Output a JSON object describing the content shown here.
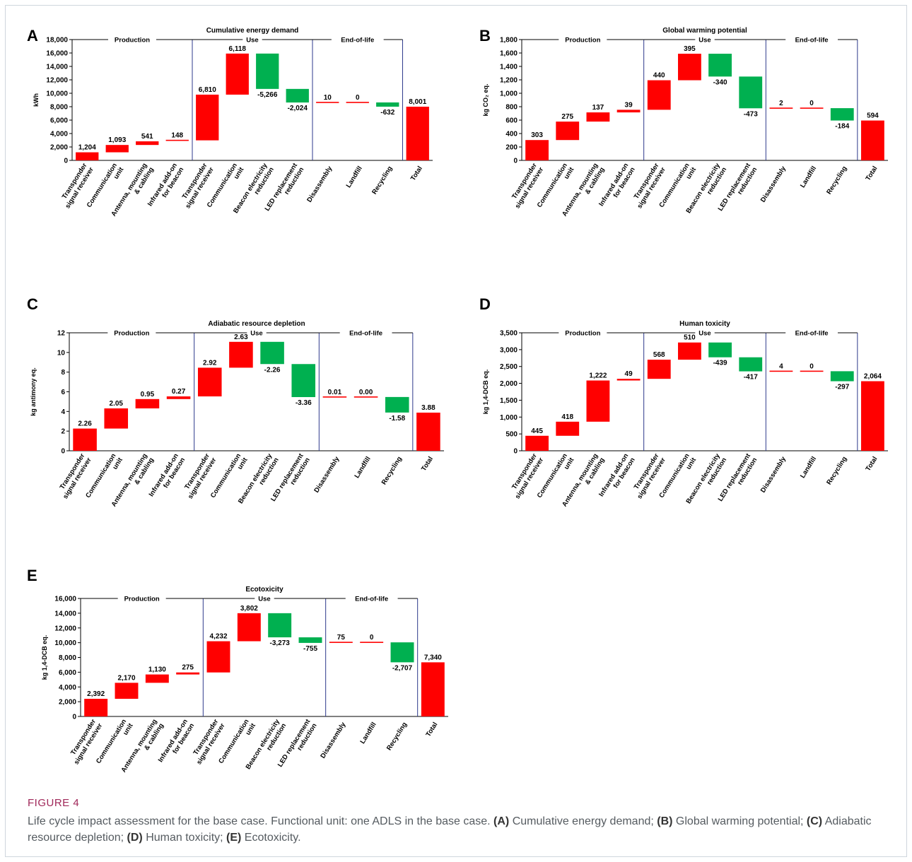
{
  "colors": {
    "increase": "#ff0000",
    "decrease": "#00b050",
    "total": "#ff0000",
    "stage_line": "#2e3a8c"
  },
  "caption": {
    "label": "FIGURE 4",
    "intro": "Life cycle impact assessment for the base case. Functional unit: one ADLS in the base case.",
    "parts": [
      {
        "tag": "(A)",
        "text": " Cumulative energy demand;"
      },
      {
        "tag": "(B)",
        "text": " Global warming potential;"
      },
      {
        "tag": "(C)",
        "text": " Adiabatic resource depletion;"
      },
      {
        "tag": "(D)",
        "text": " Human toxicity;"
      },
      {
        "tag": "(E)",
        "text": " Ecotoxicity."
      }
    ]
  },
  "chart_data": [
    {
      "panel": "A",
      "type": "bar",
      "subtype": "waterfall",
      "title": "Cumulative energy demand",
      "ylabel": "kWh",
      "ylim": [
        0,
        18000
      ],
      "yticks": [
        0,
        2000,
        4000,
        6000,
        8000,
        10000,
        12000,
        14000,
        16000,
        18000
      ],
      "ytick_labels": [
        "0",
        "2,000",
        "4,000",
        "6,000",
        "8,000",
        "10,000",
        "12,000",
        "14,000",
        "16,000",
        "18,000"
      ],
      "stages": [
        {
          "name": "Production",
          "count": 4
        },
        {
          "name": "Use",
          "count": 4
        },
        {
          "name": "End-of-life",
          "count": 3
        }
      ],
      "categories": [
        [
          "Transponder",
          "signal receiver"
        ],
        [
          "Communication",
          "unit"
        ],
        [
          "Antenna, mounting",
          "& cabling"
        ],
        [
          "Infrared add-on",
          "for beacon"
        ],
        [
          "Transponder",
          "signal receiver"
        ],
        [
          "Communication",
          "unit"
        ],
        [
          "Beacon electricity",
          "reduction"
        ],
        [
          "LED replacement",
          "reduction"
        ],
        [
          "Disassembly"
        ],
        [
          "Landfill"
        ],
        [
          "Recycling"
        ],
        [
          "Total"
        ]
      ],
      "values": [
        1204,
        1093,
        541,
        148,
        6810,
        6118,
        -5266,
        -2024,
        10,
        0,
        -632,
        8001
      ],
      "value_labels": [
        "1,204",
        "1,093",
        "541",
        "148",
        "6,810",
        "6,118",
        "-5,266",
        "-2,024",
        "10",
        "0",
        "-632",
        "8,001"
      ]
    },
    {
      "panel": "B",
      "type": "bar",
      "subtype": "waterfall",
      "title": "Global warming potential",
      "ylabel": "kg CO₂ eq.",
      "ylim": [
        0,
        1800
      ],
      "yticks": [
        0,
        200,
        400,
        600,
        800,
        1000,
        1200,
        1400,
        1600,
        1800
      ],
      "ytick_labels": [
        "0",
        "200",
        "400",
        "600",
        "800",
        "1,000",
        "1,200",
        "1,400",
        "1,600",
        "1,800"
      ],
      "stages": [
        {
          "name": "Production",
          "count": 4
        },
        {
          "name": "Use",
          "count": 4
        },
        {
          "name": "End-of-life",
          "count": 3
        }
      ],
      "categories": [
        [
          "Transponder",
          "signal receiver"
        ],
        [
          "Communication",
          "unit"
        ],
        [
          "Antenna, mounting",
          "& cabling"
        ],
        [
          "Infrared add-on",
          "for beacon"
        ],
        [
          "Transponder",
          "signal receiver"
        ],
        [
          "Communication",
          "unit"
        ],
        [
          "Beacon electricity",
          "reduction"
        ],
        [
          "LED replacement",
          "reduction"
        ],
        [
          "Disassembly"
        ],
        [
          "Landfill"
        ],
        [
          "Recycling"
        ],
        [
          "Total"
        ]
      ],
      "values": [
        303,
        275,
        137,
        39,
        440,
        395,
        -340,
        -473,
        2,
        0,
        -184,
        594
      ],
      "value_labels": [
        "303",
        "275",
        "137",
        "39",
        "440",
        "395",
        "-340",
        "-473",
        "2",
        "0",
        "-184",
        "594"
      ]
    },
    {
      "panel": "C",
      "type": "bar",
      "subtype": "waterfall",
      "title": "Adiabatic resource depletion",
      "ylabel": "kg antimony eq.",
      "ylim": [
        0,
        12
      ],
      "yticks": [
        0,
        2,
        4,
        6,
        8,
        10,
        12
      ],
      "ytick_labels": [
        "0",
        "2",
        "4",
        "6",
        "8",
        "10",
        "12"
      ],
      "stages": [
        {
          "name": "Production",
          "count": 4
        },
        {
          "name": "Use",
          "count": 4
        },
        {
          "name": "End-of-life",
          "count": 3
        }
      ],
      "categories": [
        [
          "Transponder",
          "signal receiver"
        ],
        [
          "Communication",
          "unit"
        ],
        [
          "Antenna, mounting",
          "& cabling"
        ],
        [
          "Infrared add-on",
          "for beacon"
        ],
        [
          "Transponder",
          "signal receiver"
        ],
        [
          "Communication",
          "unit"
        ],
        [
          "Beacon electricity",
          "reduction"
        ],
        [
          "LED replacement",
          "reduction"
        ],
        [
          "Disassembly"
        ],
        [
          "Landfill"
        ],
        [
          "Recycling"
        ],
        [
          "Total"
        ]
      ],
      "values": [
        2.26,
        2.05,
        0.95,
        0.27,
        2.92,
        2.63,
        -2.26,
        -3.36,
        0.01,
        0.0,
        -1.58,
        3.88
      ],
      "value_labels": [
        "2.26",
        "2.05",
        "0.95",
        "0.27",
        "2.92",
        "2.63",
        "-2.26",
        "-3.36",
        "0.01",
        "0.00",
        "-1.58",
        "3.88"
      ]
    },
    {
      "panel": "D",
      "type": "bar",
      "subtype": "waterfall",
      "title": "Human toxicity",
      "ylabel": "kg 1,4-DCB eq.",
      "ylim": [
        0,
        3500
      ],
      "yticks": [
        0,
        500,
        1000,
        1500,
        2000,
        2500,
        3000,
        3500
      ],
      "ytick_labels": [
        "0",
        "500",
        "1,000",
        "1,500",
        "2,000",
        "2,500",
        "3,000",
        "3,500"
      ],
      "stages": [
        {
          "name": "Production",
          "count": 4
        },
        {
          "name": "Use",
          "count": 4
        },
        {
          "name": "End-of-life",
          "count": 3
        }
      ],
      "categories": [
        [
          "Transponder",
          "signal receiver"
        ],
        [
          "Communication",
          "unit"
        ],
        [
          "Antenna, mounting",
          "& cabling"
        ],
        [
          "Infrared add-on",
          "for beacon"
        ],
        [
          "Transponder",
          "signal receiver"
        ],
        [
          "Communication",
          "unit"
        ],
        [
          "Beacon electricity",
          "reduction"
        ],
        [
          "LED replacement",
          "reduction"
        ],
        [
          "Disassembly"
        ],
        [
          "Landfill"
        ],
        [
          "Recycling"
        ],
        [
          "Total"
        ]
      ],
      "values": [
        445,
        418,
        1222,
        49,
        568,
        510,
        -439,
        -417,
        4,
        0,
        -297,
        2064
      ],
      "value_labels": [
        "445",
        "418",
        "1,222",
        "49",
        "568",
        "510",
        "-439",
        "-417",
        "4",
        "0",
        "-297",
        "2,064"
      ]
    },
    {
      "panel": "E",
      "type": "bar",
      "subtype": "waterfall",
      "title": "Ecotoxicity",
      "ylabel": "kg 1,4-DCB eq.",
      "ylim": [
        0,
        16000
      ],
      "yticks": [
        0,
        2000,
        4000,
        6000,
        8000,
        10000,
        12000,
        14000,
        16000
      ],
      "ytick_labels": [
        "0",
        "2,000",
        "4,000",
        "6,000",
        "8,000",
        "10,000",
        "12,000",
        "14,000",
        "16,000"
      ],
      "stages": [
        {
          "name": "Production",
          "count": 4
        },
        {
          "name": "Use",
          "count": 4
        },
        {
          "name": "End-of-life",
          "count": 3
        }
      ],
      "categories": [
        [
          "Transponder",
          "signal receiver"
        ],
        [
          "Communication",
          "unit"
        ],
        [
          "Antenna, mounting",
          "& cabling"
        ],
        [
          "Infrared add-on",
          "for beacon"
        ],
        [
          "Transponder",
          "signal receiver"
        ],
        [
          "Communication",
          "unit"
        ],
        [
          "Beacon electricity",
          "reduction"
        ],
        [
          "LED replacement",
          "reduction"
        ],
        [
          "Disassembly"
        ],
        [
          "Landfill"
        ],
        [
          "Recycling"
        ],
        [
          "Total"
        ]
      ],
      "values": [
        2392,
        2170,
        1130,
        275,
        4232,
        3802,
        -3273,
        -755,
        75,
        0,
        -2707,
        7340
      ],
      "value_labels": [
        "2,392",
        "2,170",
        "1,130",
        "275",
        "4,232",
        "3,802",
        "-3,273",
        "-755",
        "75",
        "0",
        "-2,707",
        "7,340"
      ]
    }
  ]
}
